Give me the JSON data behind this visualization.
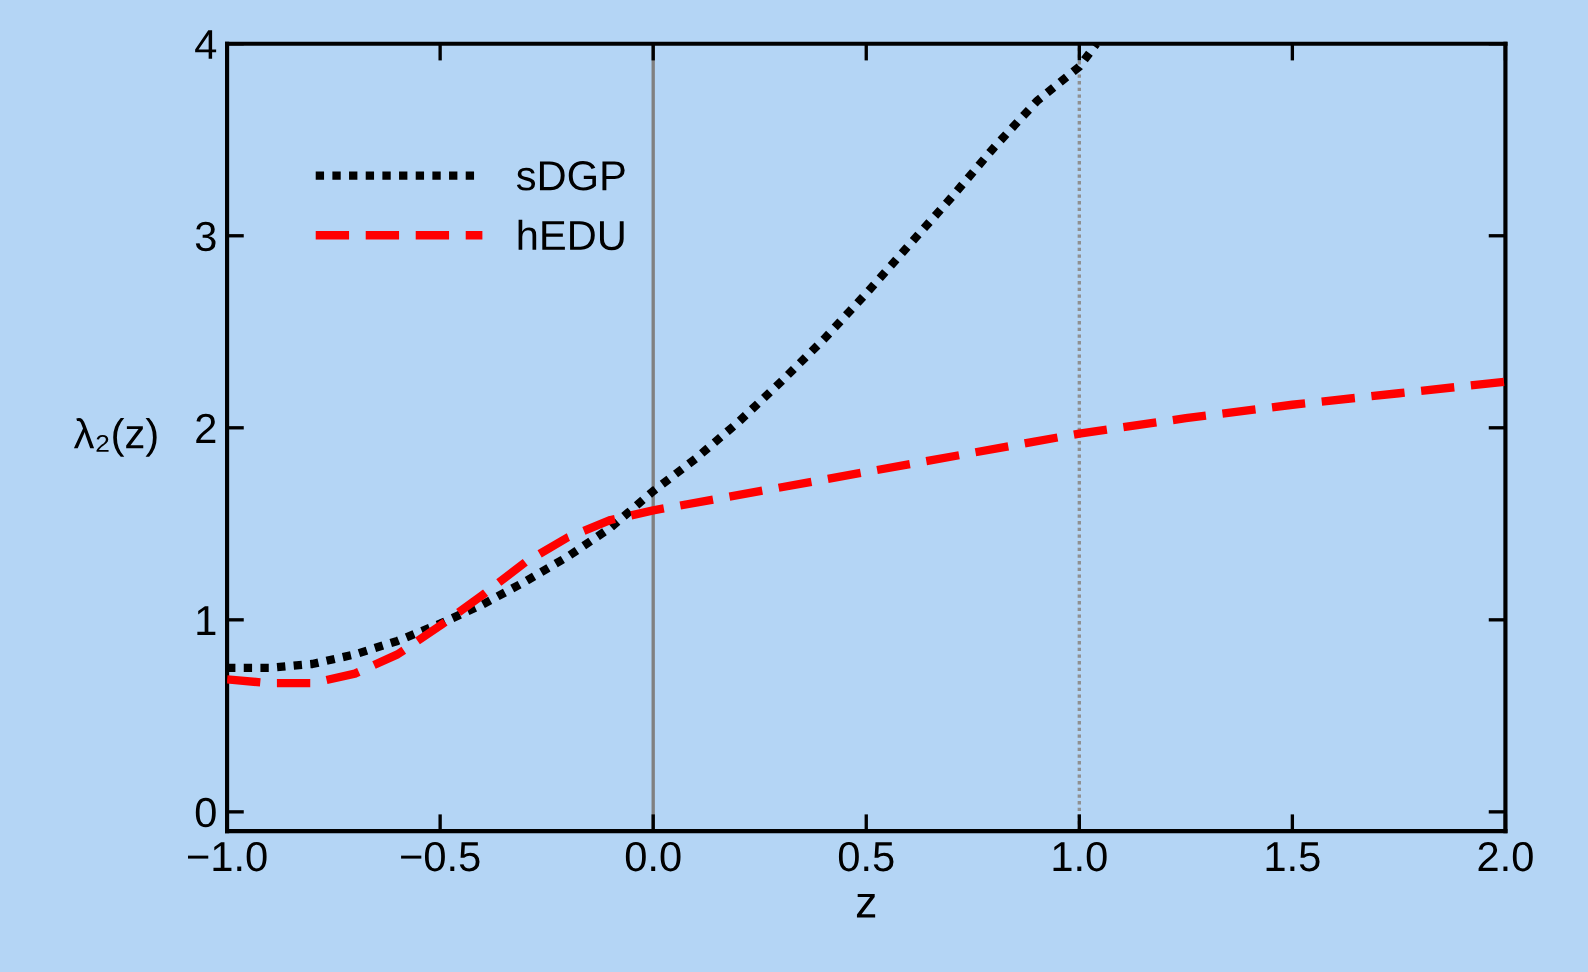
{
  "chart_data": {
    "type": "line",
    "xlabel": "z",
    "ylabel": "λ₂(z)",
    "xlim": [
      -1,
      2
    ],
    "ylim": [
      -0.1,
      4
    ],
    "xticks": [
      {
        "value": -1,
        "label": "−1.0"
      },
      {
        "value": -0.5,
        "label": "−0.5"
      },
      {
        "value": 0,
        "label": "0.0"
      },
      {
        "value": 0.5,
        "label": "0.5"
      },
      {
        "value": 1,
        "label": "1.0"
      },
      {
        "value": 1.5,
        "label": "1.5"
      },
      {
        "value": 2,
        "label": "2.0"
      }
    ],
    "yticks": [
      0,
      1,
      2,
      3,
      4
    ],
    "grid": false,
    "legend": "top left",
    "ref_lines": [
      {
        "axis": "x",
        "value": 0,
        "color": "#808080",
        "line_style": "solid"
      },
      {
        "axis": "x",
        "value": 1,
        "color": "#909090",
        "line_style": "dotted"
      }
    ],
    "series": [
      {
        "name": "sDGP",
        "color": "#000000",
        "line_style": "dotted",
        "x": [
          -1,
          -0.9,
          -0.8,
          -0.7,
          -0.6,
          -0.5,
          -0.4,
          -0.3,
          -0.2,
          -0.1,
          0,
          0.1,
          0.2,
          0.3,
          0.4,
          0.5,
          0.6,
          0.7,
          0.8,
          0.9,
          1.0,
          1.04
        ],
        "values": [
          0.75,
          0.75,
          0.77,
          0.82,
          0.89,
          0.98,
          1.08,
          1.2,
          1.33,
          1.48,
          1.67,
          1.84,
          2.03,
          2.24,
          2.46,
          2.7,
          2.95,
          3.2,
          3.46,
          3.7,
          3.88,
          4.0
        ]
      },
      {
        "name": "hEDU",
        "color": "#ff0000",
        "line_style": "dashed",
        "x": [
          -1,
          -0.9,
          -0.8,
          -0.7,
          -0.6,
          -0.5,
          -0.4,
          -0.3,
          -0.2,
          -0.1,
          0,
          0.25,
          0.5,
          0.75,
          1,
          1.25,
          1.5,
          1.75,
          2
        ],
        "values": [
          0.69,
          0.67,
          0.67,
          0.72,
          0.82,
          0.97,
          1.13,
          1.3,
          1.43,
          1.52,
          1.57,
          1.67,
          1.77,
          1.87,
          1.97,
          2.05,
          2.12,
          2.18,
          2.24
        ]
      }
    ]
  }
}
